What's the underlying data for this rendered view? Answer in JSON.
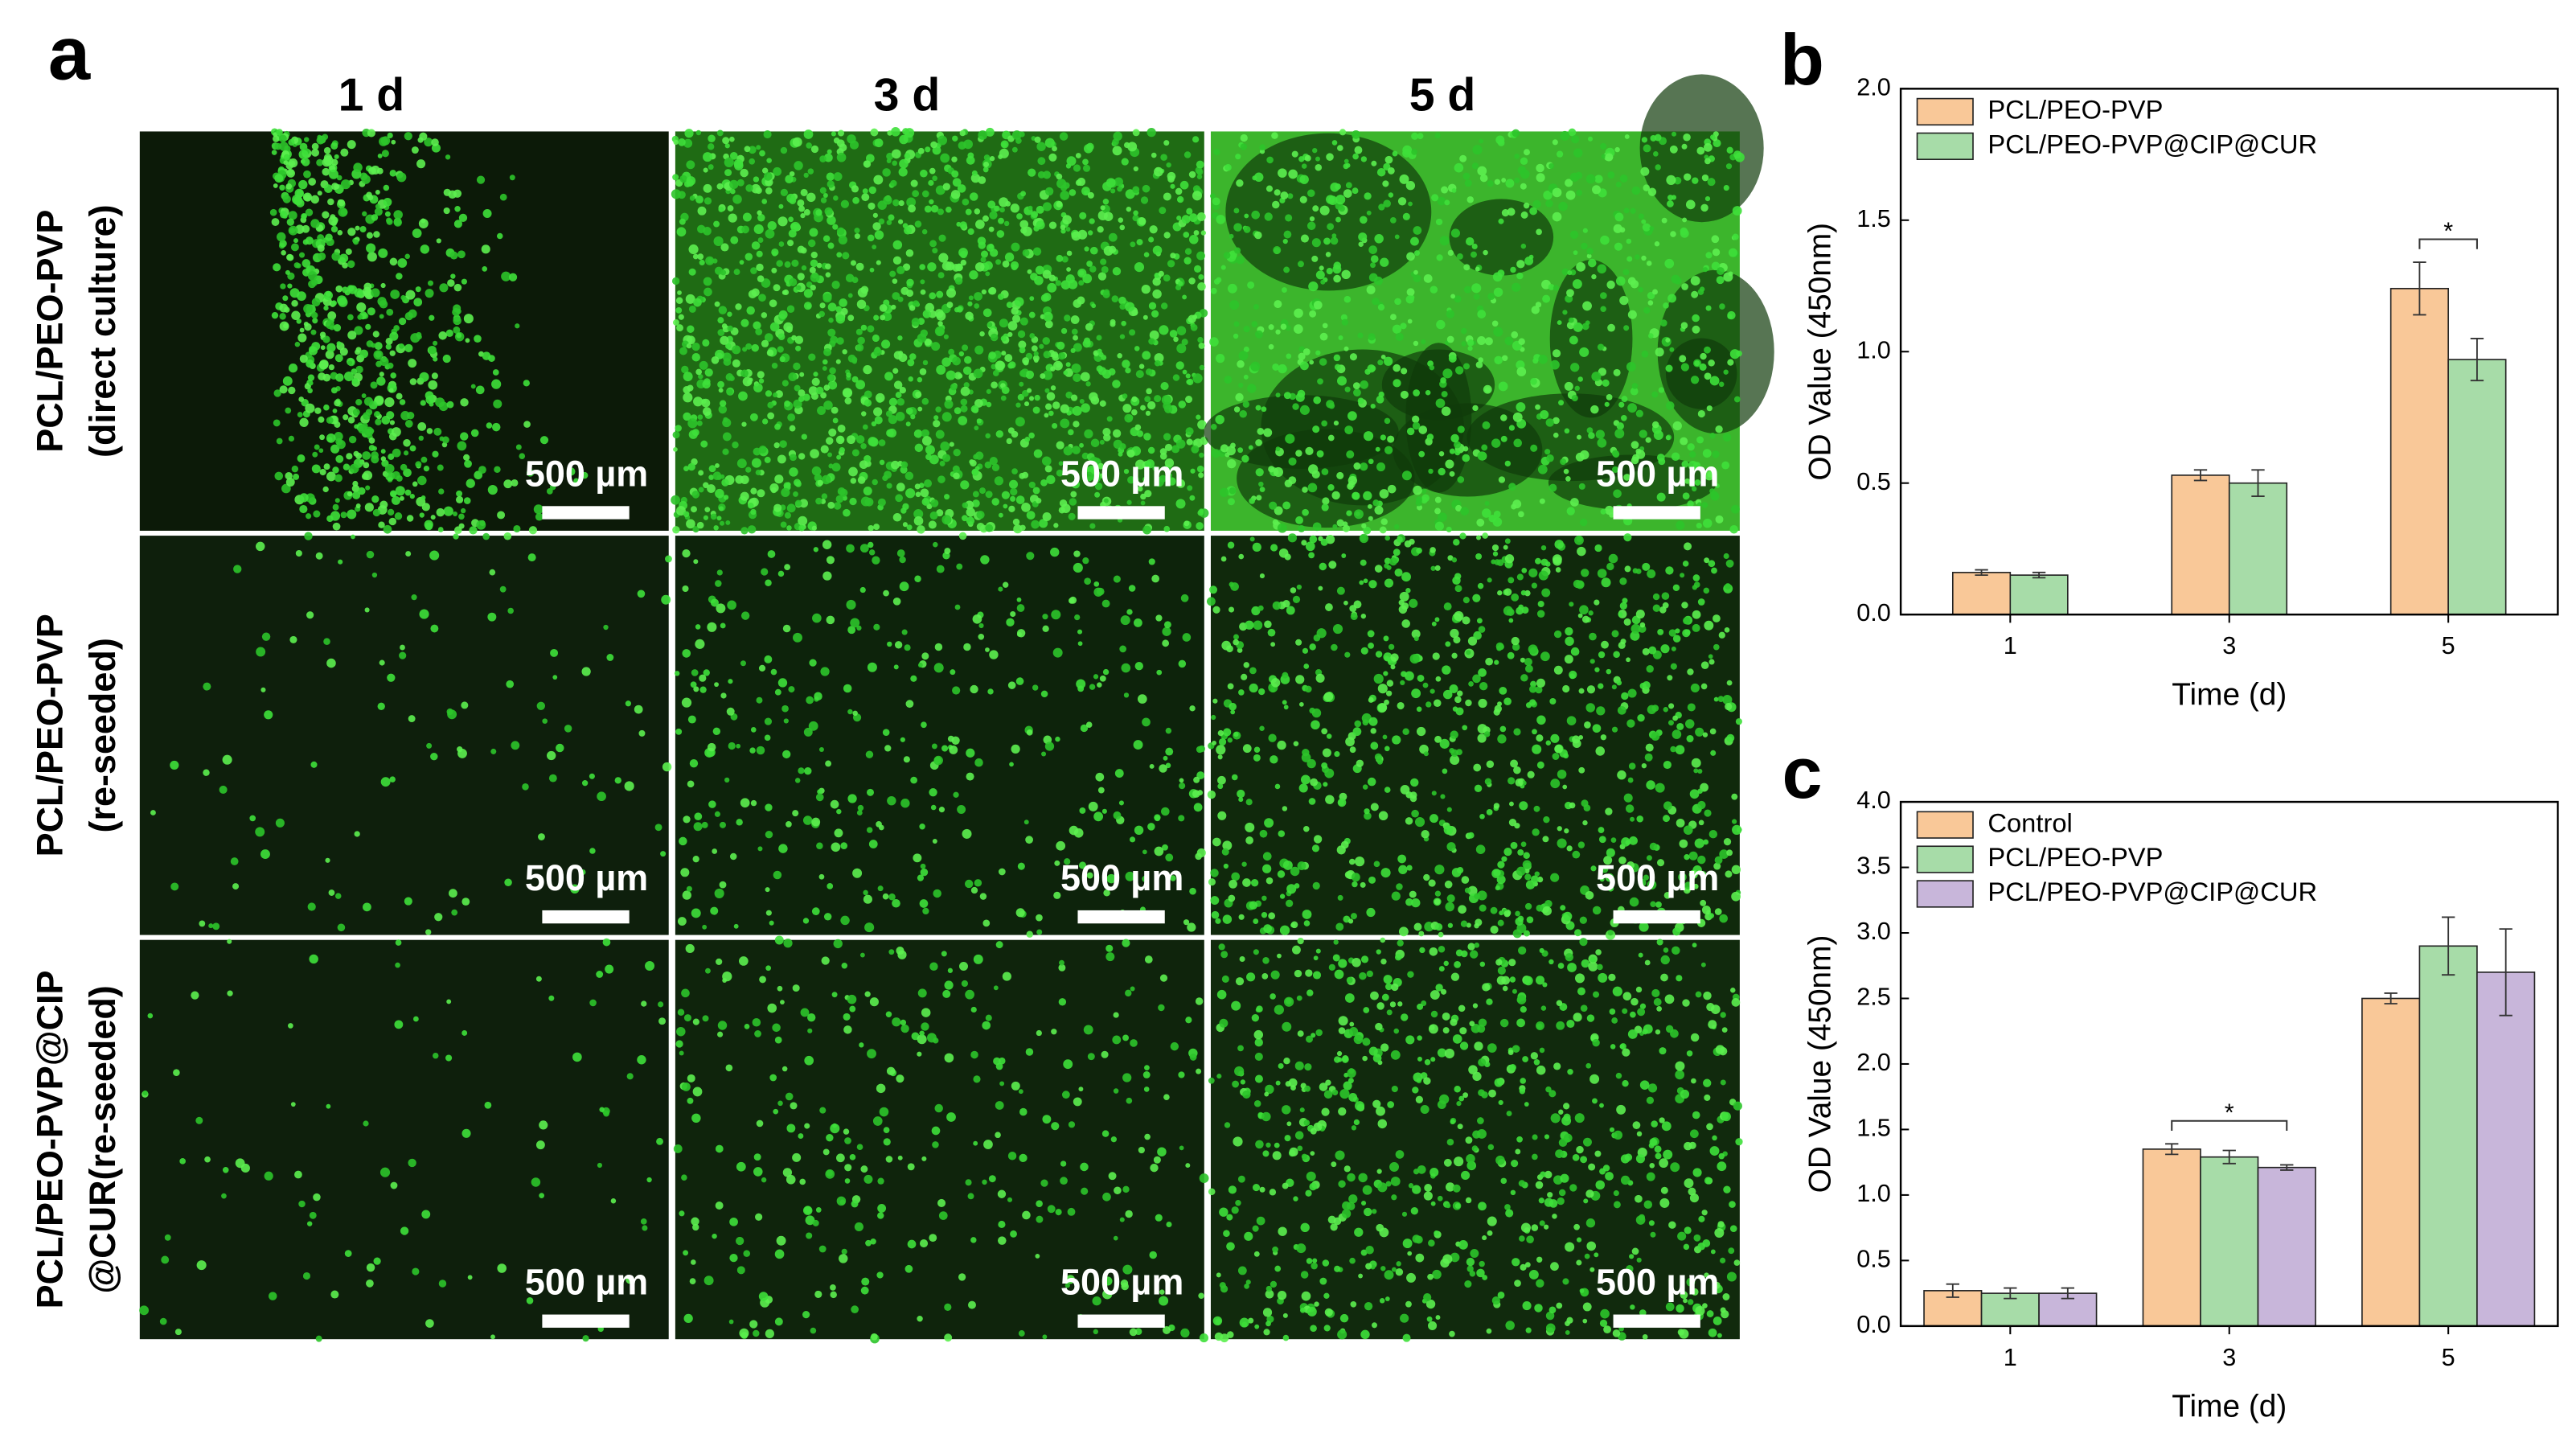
{
  "panel_a": {
    "letter": "a",
    "column_labels": [
      "1 d",
      "3 d",
      "5 d"
    ],
    "row_labels": [
      [
        "PCL/PEO-PVP",
        "(direct culture)"
      ],
      [
        "PCL/PEO-PVP",
        "(re-seeded)"
      ],
      [
        "PCL/PEO-PVP@CIP",
        "@CUR(re-seeded)"
      ]
    ],
    "scale_bar_label": "500 µm"
  },
  "chart_data": [
    {
      "type": "bar",
      "letter": "b",
      "x_label": "Time (d)",
      "y_label": "OD Value (450nm)",
      "categories": [
        "1",
        "3",
        "5"
      ],
      "series": [
        {
          "name": "PCL/PEO-PVP",
          "color": "#f9c898",
          "values": [
            0.16,
            0.53,
            1.24
          ],
          "errors": [
            0.01,
            0.02,
            0.1
          ]
        },
        {
          "name": "PCL/PEO-PVP@CIP@CUR",
          "color": "#a7dca8",
          "values": [
            0.15,
            0.5,
            0.97
          ],
          "errors": [
            0.01,
            0.05,
            0.08
          ]
        }
      ],
      "ylim": [
        0,
        2
      ],
      "yticks": [
        {
          "value": 0,
          "label": "0.0"
        },
        0.5,
        {
          "value": 1,
          "label": "1.0"
        },
        1.5,
        {
          "value": 2,
          "label": "2.0"
        }
      ],
      "annotations": [
        {
          "text": "*",
          "category": "5"
        }
      ],
      "legend": "upper left"
    },
    {
      "type": "bar",
      "letter": "c",
      "x_label": "Time (d)",
      "y_label": "OD Value (450nm)",
      "categories": [
        "1",
        "3",
        "5"
      ],
      "series": [
        {
          "name": "Control",
          "color": "#f9c898",
          "values": [
            0.27,
            1.35,
            2.5
          ],
          "errors": [
            0.05,
            0.04,
            0.04
          ]
        },
        {
          "name": "PCL/PEO-PVP",
          "color": "#a7dca8",
          "values": [
            0.25,
            1.29,
            2.9
          ],
          "errors": [
            0.04,
            0.05,
            0.22
          ]
        },
        {
          "name": "PCL/PEO-PVP@CIP@CUR",
          "color": "#c8b6da",
          "values": [
            0.25,
            1.21,
            2.7
          ],
          "errors": [
            0.04,
            0.02,
            0.33
          ]
        }
      ],
      "ylim": [
        0,
        4
      ],
      "yticks": [
        {
          "value": 0,
          "label": "0.0"
        },
        0.5,
        {
          "value": 1,
          "label": "1.0"
        },
        1.5,
        {
          "value": 2,
          "label": "2.0"
        },
        2.5,
        {
          "value": 3,
          "label": "3.0"
        },
        3.5,
        {
          "value": 4,
          "label": "4.0"
        }
      ],
      "annotations": [
        {
          "text": "*",
          "category": "3"
        }
      ],
      "legend": "upper left"
    }
  ]
}
